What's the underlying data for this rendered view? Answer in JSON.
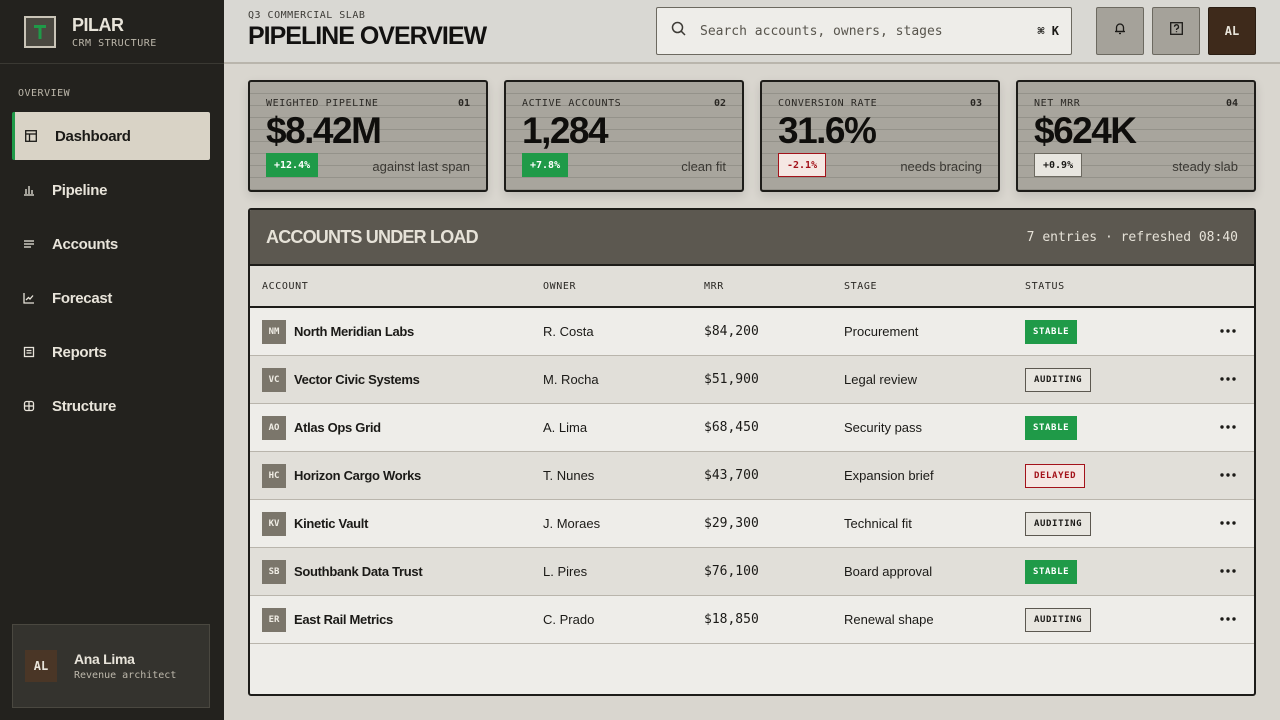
{
  "brand": {
    "name": "PILAR",
    "subtitle": "CRM STRUCTURE"
  },
  "sidebar": {
    "heading": "OVERVIEW",
    "items": [
      {
        "label": "Dashboard",
        "icon": "dashboard-icon",
        "active": true
      },
      {
        "label": "Pipeline",
        "icon": "bar-chart-icon"
      },
      {
        "label": "Accounts",
        "icon": "list-icon"
      },
      {
        "label": "Forecast",
        "icon": "trend-icon"
      },
      {
        "label": "Reports",
        "icon": "report-icon"
      },
      {
        "label": "Structure",
        "icon": "grid-icon"
      }
    ],
    "user": {
      "initials": "AL",
      "name": "Ana Lima",
      "role": "Revenue architect"
    }
  },
  "header": {
    "crumb": "Q3 COMMERCIAL SLAB",
    "title": "PIPELINE OVERVIEW",
    "search_placeholder": "Search accounts, owners, stages",
    "shortcut": "⌘ K",
    "avatar_initials": "AL"
  },
  "kpis": [
    {
      "label": "WEIGHTED PIPELINE",
      "num": "01",
      "value": "$8.42M",
      "delta": "+12.4%",
      "note": "against last span",
      "tone": "up"
    },
    {
      "label": "ACTIVE ACCOUNTS",
      "num": "02",
      "value": "1,284",
      "delta": "+7.8%",
      "note": "clean fit",
      "tone": "up"
    },
    {
      "label": "CONVERSION RATE",
      "num": "03",
      "value": "31.6%",
      "delta": "-2.1%",
      "note": "needs bracing",
      "tone": "down"
    },
    {
      "label": "NET MRR",
      "num": "04",
      "value": "$624K",
      "delta": "+0.9%",
      "note": "steady slab",
      "tone": "flat"
    }
  ],
  "table": {
    "title": "ACCOUNTS UNDER LOAD",
    "meta": "7 entries · refreshed 08:40",
    "columns": [
      "ACCOUNT",
      "OWNER",
      "MRR",
      "STAGE",
      "STATUS"
    ],
    "rows": [
      {
        "initials": "NM",
        "account": "North Meridian Labs",
        "owner": "R. Costa",
        "mrr": "$84,200",
        "stage": "Procurement",
        "status": "STABLE"
      },
      {
        "initials": "VC",
        "account": "Vector Civic Systems",
        "owner": "M. Rocha",
        "mrr": "$51,900",
        "stage": "Legal review",
        "status": "AUDITING"
      },
      {
        "initials": "AO",
        "account": "Atlas Ops Grid",
        "owner": "A. Lima",
        "mrr": "$68,450",
        "stage": "Security pass",
        "status": "STABLE"
      },
      {
        "initials": "HC",
        "account": "Horizon Cargo Works",
        "owner": "T. Nunes",
        "mrr": "$43,700",
        "stage": "Expansion brief",
        "status": "DELAYED"
      },
      {
        "initials": "KV",
        "account": "Kinetic Vault",
        "owner": "J. Moraes",
        "mrr": "$29,300",
        "stage": "Technical fit",
        "status": "AUDITING"
      },
      {
        "initials": "SB",
        "account": "Southbank Data Trust",
        "owner": "L. Pires",
        "mrr": "$76,100",
        "stage": "Board approval",
        "status": "STABLE"
      },
      {
        "initials": "ER",
        "account": "East Rail Metrics",
        "owner": "C. Prado",
        "mrr": "$18,850",
        "stage": "Renewal shape",
        "status": "AUDITING"
      }
    ]
  },
  "colors": {
    "accent": "#1f9a48",
    "danger": "#a3121a",
    "sidebar": "#23221e",
    "panel_head": "#5c5850"
  }
}
